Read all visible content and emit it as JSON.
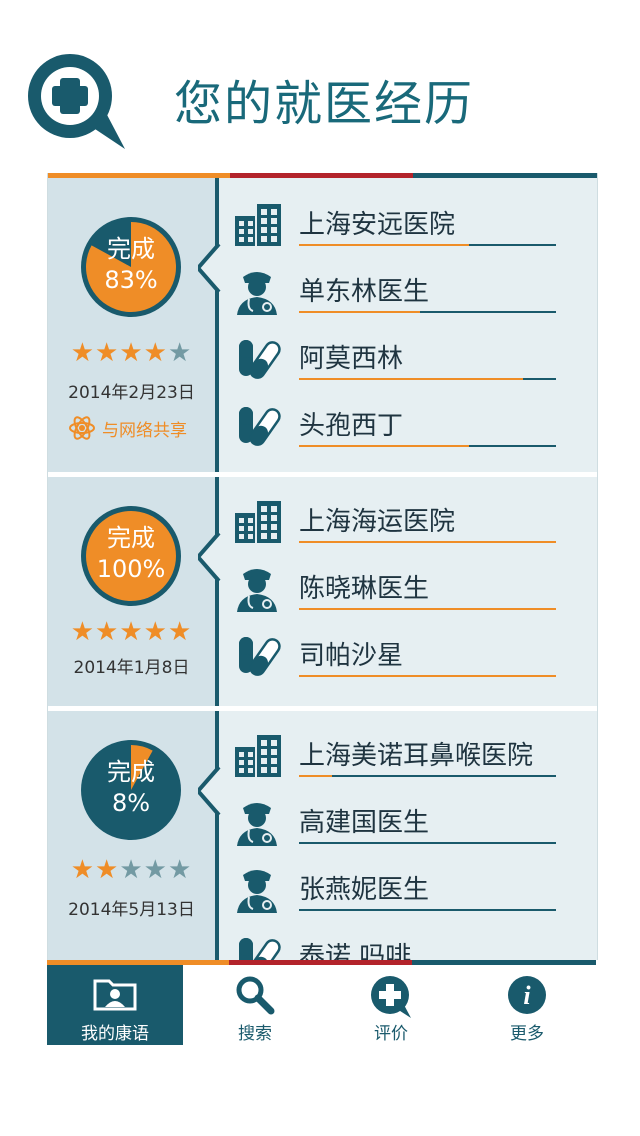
{
  "header": {
    "title": "您的就医经历",
    "logo_icon": "medical-plus-chat-icon"
  },
  "colors": {
    "primary": "#195a6c",
    "accent": "#ef8d27",
    "red": "#b3232b",
    "panel": "#d3e2e8",
    "bg": "#e6eff2"
  },
  "records": [
    {
      "progress_label": "完成",
      "progress_value": "83%",
      "progress_fraction": 0.83,
      "rating": 4,
      "rating_max": 5,
      "date": "2014年2月23日",
      "share_label": "与网络共享",
      "items": [
        {
          "type": "hospital",
          "icon": "hospital-building-icon",
          "label": "上海安远医院",
          "fill": 0.66
        },
        {
          "type": "doctor",
          "icon": "doctor-icon",
          "label": "单东林医生",
          "fill": 0.47
        },
        {
          "type": "medicine",
          "icon": "pill-icon",
          "label": "阿莫西林",
          "fill": 0.87
        },
        {
          "type": "medicine",
          "icon": "pill-icon",
          "label": "头孢西丁",
          "fill": 0.66
        }
      ]
    },
    {
      "progress_label": "完成",
      "progress_value": "100%",
      "progress_fraction": 1.0,
      "rating": 5,
      "rating_max": 5,
      "date": "2014年1月8日",
      "items": [
        {
          "type": "hospital",
          "icon": "hospital-building-icon",
          "label": "上海海运医院",
          "fill": 1.0
        },
        {
          "type": "doctor",
          "icon": "doctor-icon",
          "label": "陈晓琳医生",
          "fill": 1.0
        },
        {
          "type": "medicine",
          "icon": "pill-icon",
          "label": "司帕沙星",
          "fill": 1.0
        }
      ]
    },
    {
      "progress_label": "完成",
      "progress_value": "8%",
      "progress_fraction": 0.08,
      "rating": 2,
      "rating_max": 5,
      "date": "2014年5月13日",
      "items": [
        {
          "type": "hospital",
          "icon": "hospital-building-icon",
          "label": "上海美诺耳鼻喉医院",
          "fill": 0.13
        },
        {
          "type": "doctor",
          "icon": "doctor-icon",
          "label": "高建国医生",
          "fill": 0
        },
        {
          "type": "doctor",
          "icon": "doctor-icon",
          "label": "张燕妮医生",
          "fill": 0
        },
        {
          "type": "medicine",
          "icon": "pill-icon",
          "label": "泰诺 吗啡",
          "fill": 0
        }
      ]
    }
  ],
  "tabs": [
    {
      "label": "我的康语",
      "icon": "folder-user-icon",
      "active": true
    },
    {
      "label": "搜索",
      "icon": "search-icon",
      "active": false
    },
    {
      "label": "评价",
      "icon": "plus-chat-icon",
      "active": false
    },
    {
      "label": "更多",
      "icon": "info-icon",
      "active": false
    }
  ]
}
